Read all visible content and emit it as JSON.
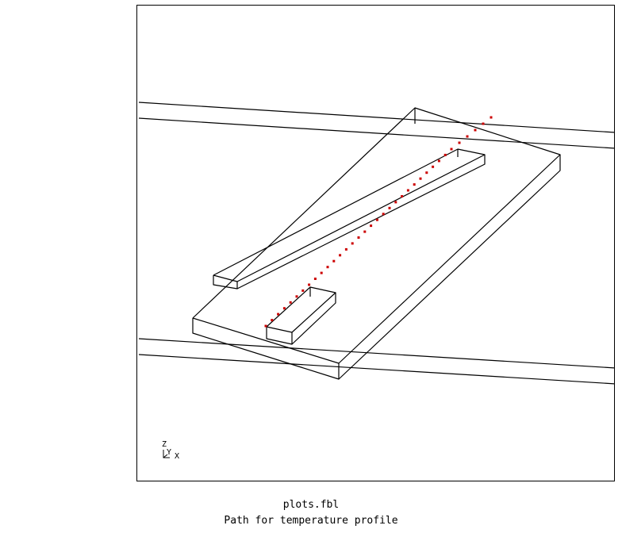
{
  "viewport": {
    "line_color": "#000000",
    "path_point_color": "#cc0000",
    "background": "#ffffff"
  },
  "triad": {
    "z_label": "Z",
    "y_label": "Y",
    "x_label": "X"
  },
  "caption": {
    "file": "plots.fbl",
    "description": "Path for temperature profile"
  }
}
